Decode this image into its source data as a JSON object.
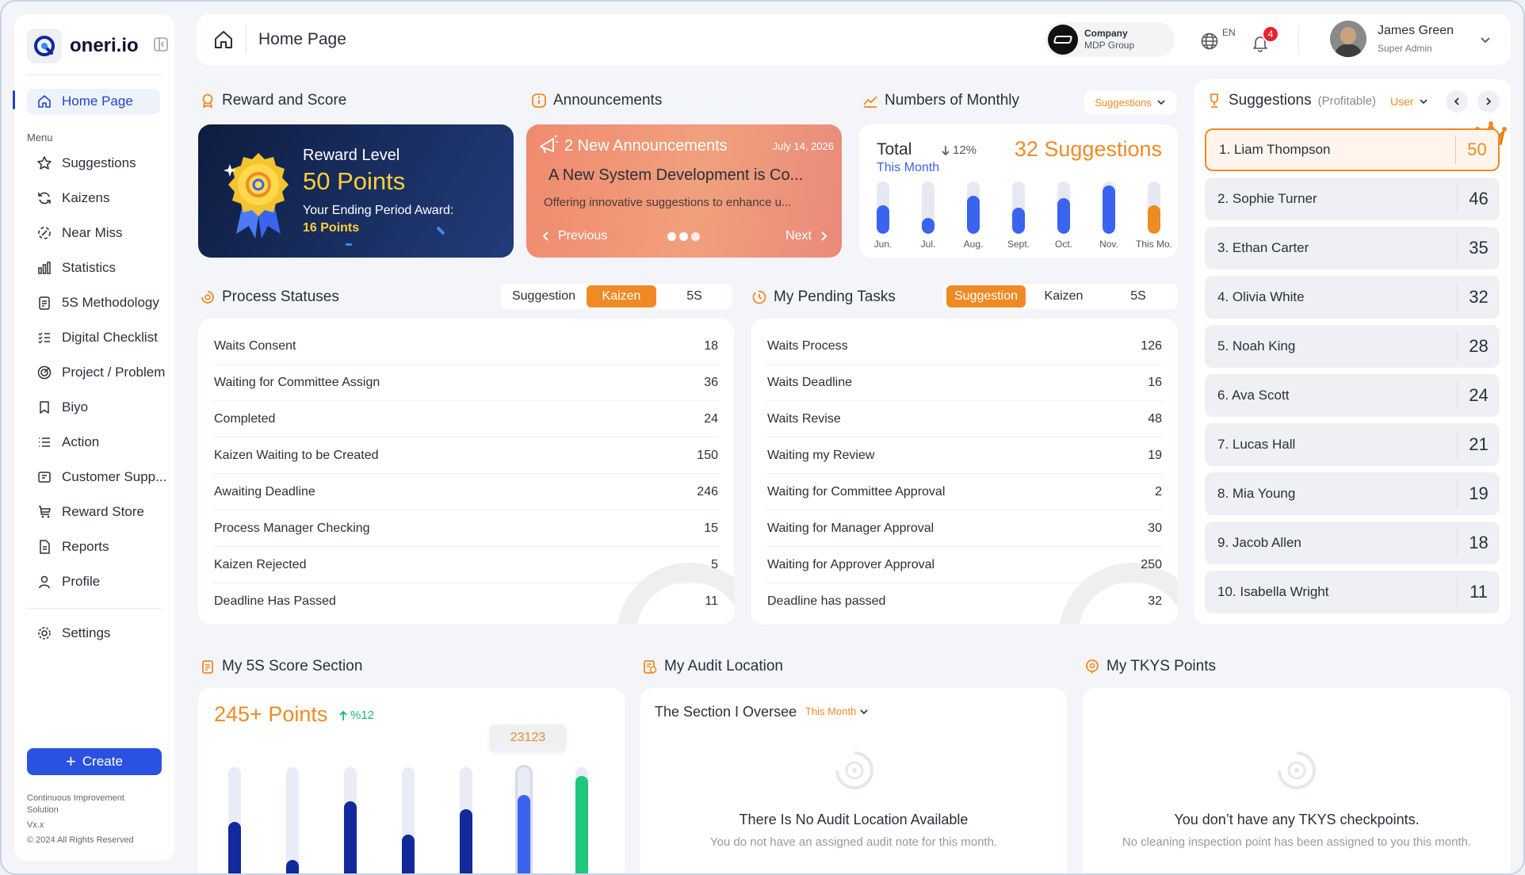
{
  "brand": {
    "name": "oneri.io"
  },
  "sidebar": {
    "menu_label": "Menu",
    "home": "Home Page",
    "items": [
      "Suggestions",
      "Kaizens",
      "Near Miss",
      "Statistics",
      "5S Methodology",
      "Digital Checklist",
      "Project / Problem",
      "Biyo",
      "Action",
      "Customer Supp...",
      "Reward Store",
      "Reports",
      "Profile"
    ],
    "settings": "Settings",
    "create": "Create",
    "footer": {
      "line1": "Continuous Improvement",
      "line2": "Solution",
      "version": "Vx.x",
      "copyright": "© 2024 All Rights Reserved"
    }
  },
  "header": {
    "title": "Home Page",
    "company_label": "Company",
    "company_name": "MDP Group",
    "language": "EN",
    "notifications": "4",
    "user_name": "James Green",
    "user_role": "Super Admin"
  },
  "reward": {
    "section": "Reward and Score",
    "level_label": "Reward Level",
    "points": "50 Points",
    "ending_label": "Your Ending Period Award:",
    "ending_points": "16 Points"
  },
  "announcements": {
    "section": "Announcements",
    "count_label": "2 New Announcements",
    "date": "July 14, 2026",
    "headline": "A New System Development is Co...",
    "body": "Offering innovative suggestions to enhance u...",
    "prev": "Previous",
    "next": "Next"
  },
  "monthly": {
    "section": "Numbers of Monthly",
    "dropdown": "Suggestions",
    "total_label": "Total",
    "change": "12%",
    "period": "This Month",
    "suggestions": "32 Suggestions",
    "bars": [
      {
        "label": "Jun.",
        "value": 0.55,
        "color": "#3a63f0"
      },
      {
        "label": "Jul.",
        "value": 0.3,
        "color": "#3a63f0"
      },
      {
        "label": "Aug.",
        "value": 0.72,
        "color": "#3a63f0"
      },
      {
        "label": "Sept.",
        "value": 0.5,
        "color": "#3a63f0"
      },
      {
        "label": "Oct.",
        "value": 0.68,
        "color": "#3a63f0"
      },
      {
        "label": "Nov.",
        "value": 0.92,
        "color": "#3a63f0"
      },
      {
        "label": "This Mo.",
        "value": 0.55,
        "color": "#f08a24"
      }
    ]
  },
  "suggestions_rank": {
    "title": "Suggestions",
    "subtitle": "(Profitable)",
    "filter": "User",
    "items": [
      {
        "name": "1. Liam Thompson",
        "score": "50"
      },
      {
        "name": "2. Sophie Turner",
        "score": "46"
      },
      {
        "name": "3. Ethan Carter",
        "score": "35"
      },
      {
        "name": "4. Olivia White",
        "score": "32"
      },
      {
        "name": "5. Noah King",
        "score": "28"
      },
      {
        "name": "6. Ava Scott",
        "score": "24"
      },
      {
        "name": "7. Lucas Hall",
        "score": "21"
      },
      {
        "name": "8. Mia Young",
        "score": "19"
      },
      {
        "name": "9. Jacob Allen",
        "score": "18"
      },
      {
        "name": "10. Isabella Wright",
        "score": "11"
      }
    ]
  },
  "process": {
    "section": "Process Statuses",
    "tabs": [
      "Suggestion",
      "Kaizen",
      "5S"
    ],
    "active_tab": 1,
    "rows": [
      {
        "label": "Waits Consent",
        "value": "18"
      },
      {
        "label": "Waiting for Committee Assign",
        "value": "36"
      },
      {
        "label": "Completed",
        "value": "24"
      },
      {
        "label": "Kaizen Waiting to be Created",
        "value": "150"
      },
      {
        "label": "Awaiting Deadline",
        "value": "246"
      },
      {
        "label": "Process Manager Checking",
        "value": "15"
      },
      {
        "label": "Kaizen Rejected",
        "value": "5"
      },
      {
        "label": "Deadline Has Passed",
        "value": "11"
      }
    ]
  },
  "pending": {
    "section": "My Pending Tasks",
    "tabs": [
      "Suggestion",
      "Kaizen",
      "5S"
    ],
    "active_tab": 0,
    "rows": [
      {
        "label": "Waits Process",
        "value": "126"
      },
      {
        "label": "Waits Deadline",
        "value": "16"
      },
      {
        "label": "Waits Revise",
        "value": "48"
      },
      {
        "label": "Waiting my Review",
        "value": "19"
      },
      {
        "label": "Waiting for Committee Approval",
        "value": "2"
      },
      {
        "label": "Waiting for Manager Approval",
        "value": "30"
      },
      {
        "label": "Waiting for Approver Approval",
        "value": "250"
      },
      {
        "label": "Deadline has passed",
        "value": "32"
      }
    ]
  },
  "score5s": {
    "section": "My 5S Score Section",
    "points": "245+ Points",
    "change": "%12",
    "tooltip": "23123",
    "bars": [
      {
        "value": 0.57,
        "color": "#11299a"
      },
      {
        "value": 0.27,
        "color": "#11299a"
      },
      {
        "value": 0.73,
        "color": "#11299a"
      },
      {
        "value": 0.47,
        "color": "#11299a"
      },
      {
        "value": 0.67,
        "color": "#11299a"
      },
      {
        "value": 0.78,
        "color": "#3a63f0"
      },
      {
        "value": 0.93,
        "color": "#1fc77c"
      }
    ]
  },
  "audit": {
    "section": "My Audit Location",
    "card_title": "The Section I Oversee",
    "period": "This Month",
    "empty_title": "There Is No Audit Location Available",
    "empty_sub": "You do not have an assigned audit note for this month."
  },
  "tkys": {
    "section": "My TKYS Points",
    "empty_title": "You don’t have any TKYS checkpoints.",
    "empty_sub": "No cleaning inspection point has been assigned to you this month."
  },
  "colors": {
    "accent": "#f08a24",
    "primary": "#2244c8",
    "navy": "#11299a"
  }
}
